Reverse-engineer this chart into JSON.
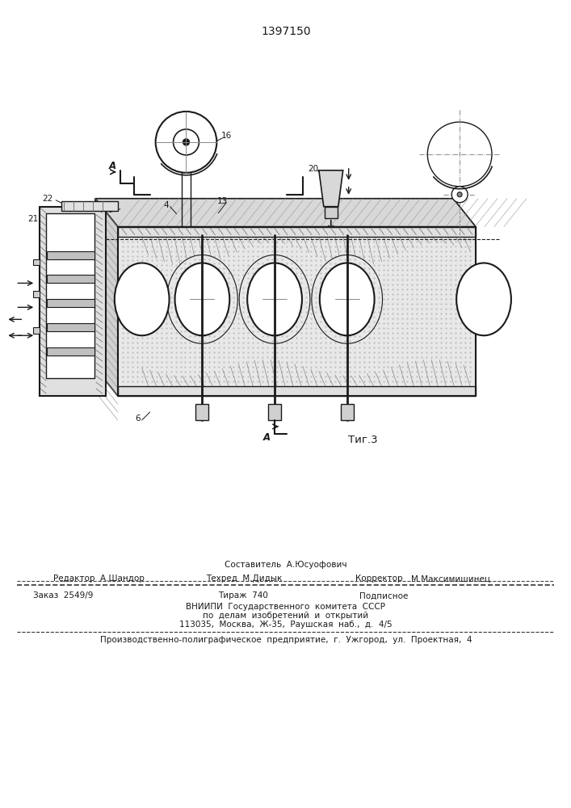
{
  "patent_number": "1397150",
  "fig_label": "Τиг.3",
  "bg_color": "#ffffff",
  "line_color": "#1a1a1a",
  "footer": {
    "line1_center_top": "Составитель  А.Юсуофович",
    "line1_left": "Редактор  А.Шандор",
    "line1_center": "Техред  М.Дидык",
    "line1_right_label": "Корректор",
    "line1_right": "М.Максимишинец",
    "line2_left": "Заказ  2549/9",
    "line2_center": "Тираж  740",
    "line2_right": "Подписное",
    "line3": "ВНИИПИ  Государственного  комитета  СССР",
    "line4": "по  делам  изобретений  и  открытий",
    "line5": "113035,  Москва,  Ж-35,  Раушская  наб.,  д.  4/5",
    "line6": "Производственно-полиграфическое  предприятие,  г.  Ужгород,  ул.  Проектная,  4"
  }
}
